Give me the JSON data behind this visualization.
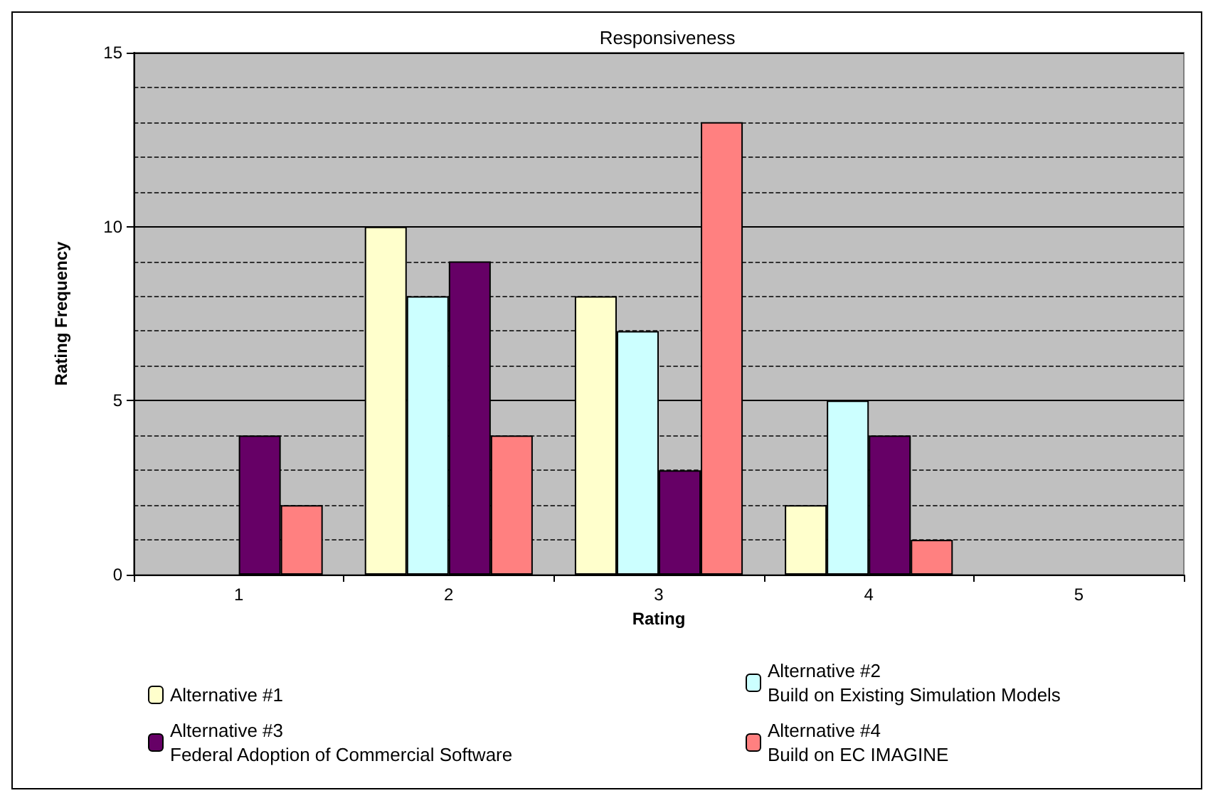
{
  "chart_data": {
    "type": "bar",
    "title": "Responsiveness",
    "xlabel": "Rating",
    "ylabel": "Rating Frequency",
    "categories": [
      "1",
      "2",
      "3",
      "4",
      "5"
    ],
    "series": [
      {
        "name": "Alternative #1",
        "color": "#ffffcc",
        "values": [
          0,
          10,
          8,
          2,
          0
        ]
      },
      {
        "name": "Alternative #2\nBuild on Existing Simulation Models",
        "color": "#ccffff",
        "values": [
          0,
          8,
          7,
          5,
          0
        ]
      },
      {
        "name": "Alternative #3\nFederal Adoption of Commercial Software",
        "color": "#660066",
        "values": [
          4,
          9,
          3,
          4,
          0
        ]
      },
      {
        "name": "Alternative #4\nBuild on EC IMAGINE",
        "color": "#ff8080",
        "values": [
          2,
          4,
          13,
          1,
          0
        ]
      }
    ],
    "ylim": [
      0,
      15
    ],
    "yticks": [
      0,
      5,
      10,
      15
    ],
    "grid": true,
    "legend": "bottom"
  }
}
